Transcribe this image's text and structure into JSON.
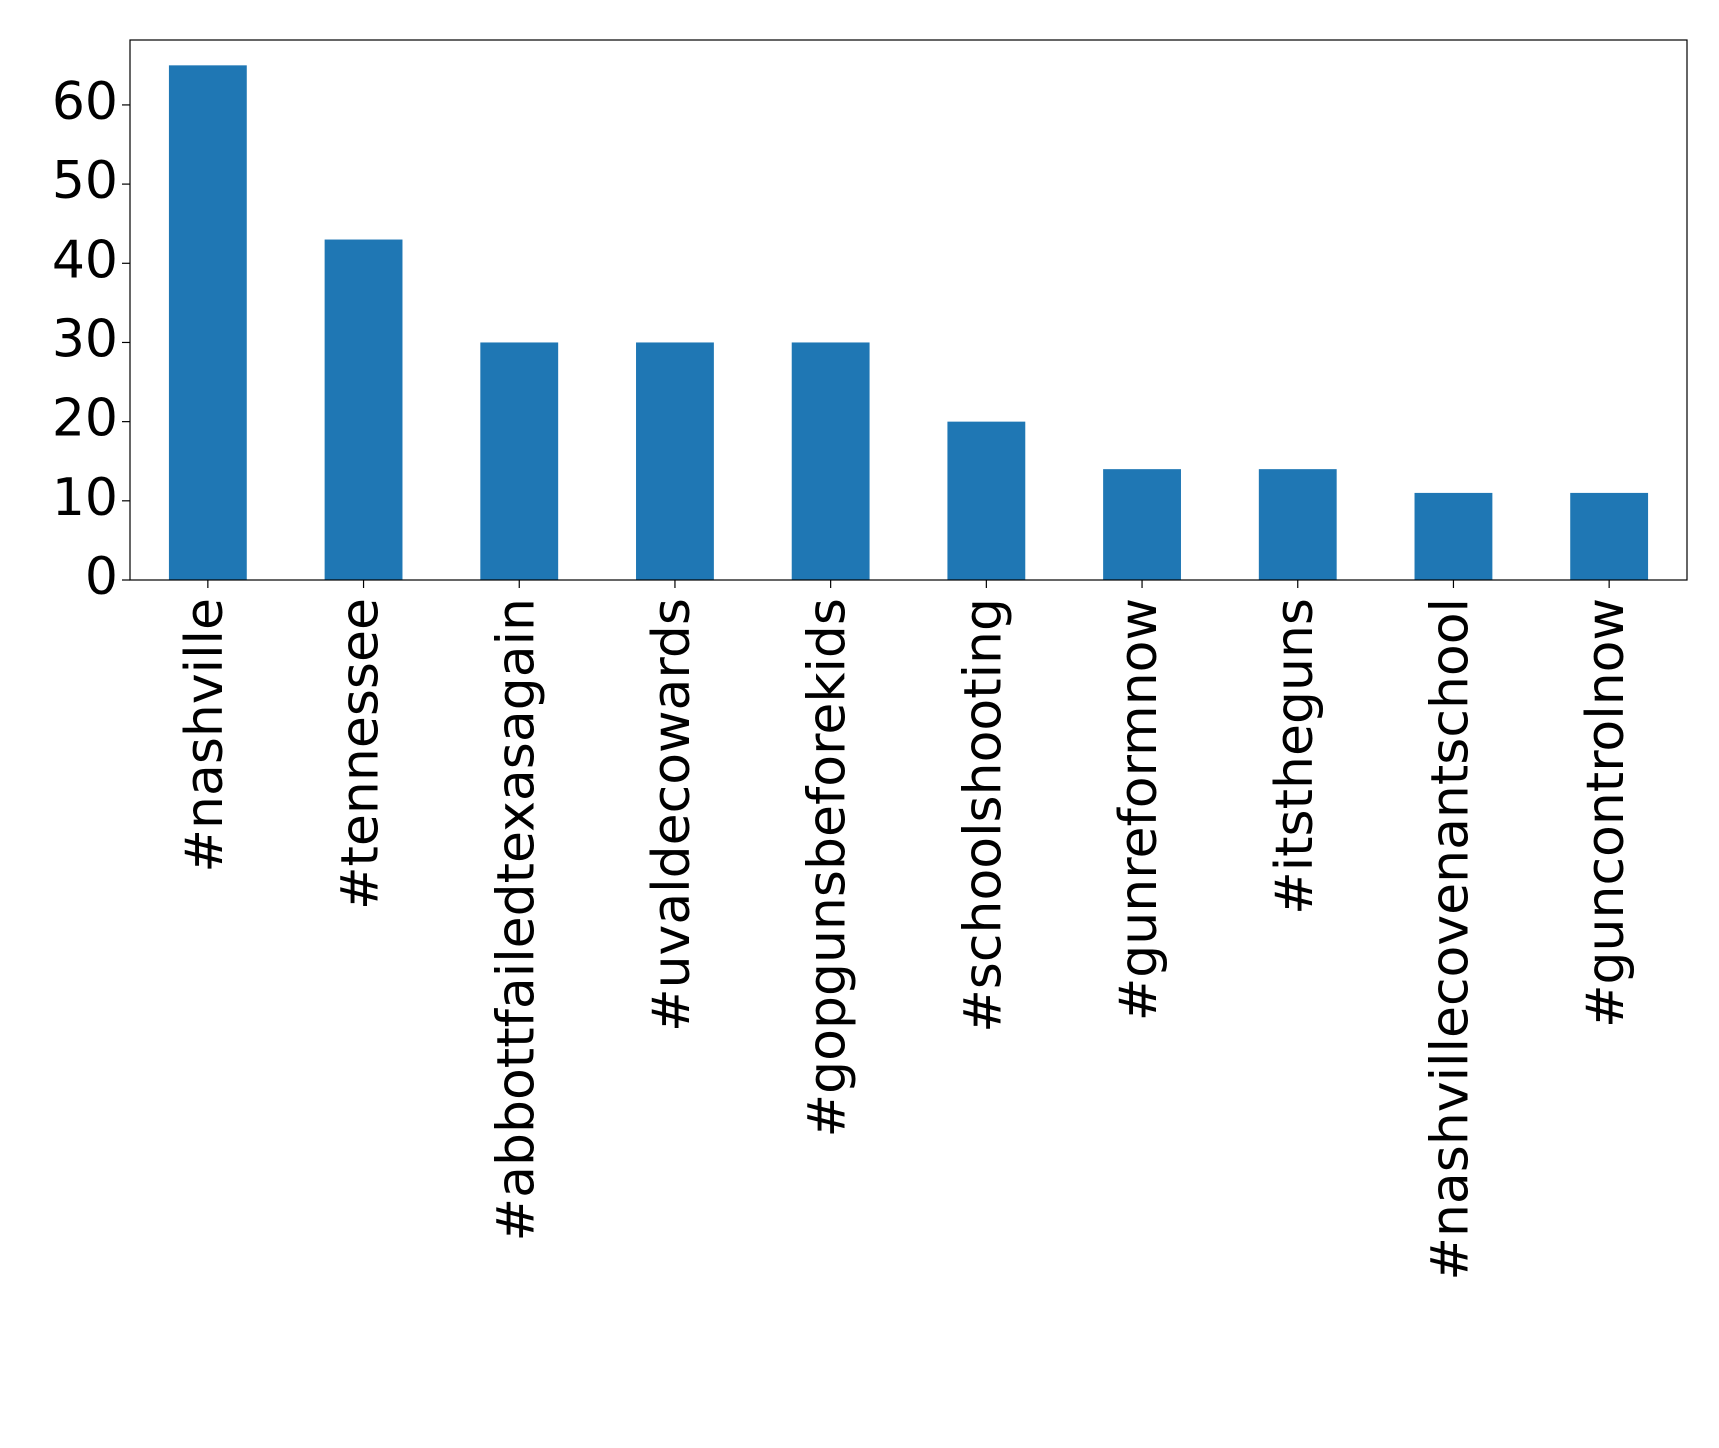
{
  "chart_data": {
    "type": "bar",
    "categories": [
      "#nashville",
      "#tennessee",
      "#abbottfailedtexasagain",
      "#uvaldecowards",
      "#gopgunsbeforekids",
      "#schoolshooting",
      "#gunreformnow",
      "#itstheguns",
      "#nashvillecovenantschool",
      "#guncontrolnow"
    ],
    "values": [
      65,
      43,
      30,
      30,
      30,
      20,
      14,
      14,
      11,
      11
    ],
    "color": "#1f77b4",
    "ylim": [
      0,
      68.2
    ],
    "yticks": [
      0,
      10,
      20,
      30,
      40,
      50,
      60
    ],
    "grid": false
  }
}
